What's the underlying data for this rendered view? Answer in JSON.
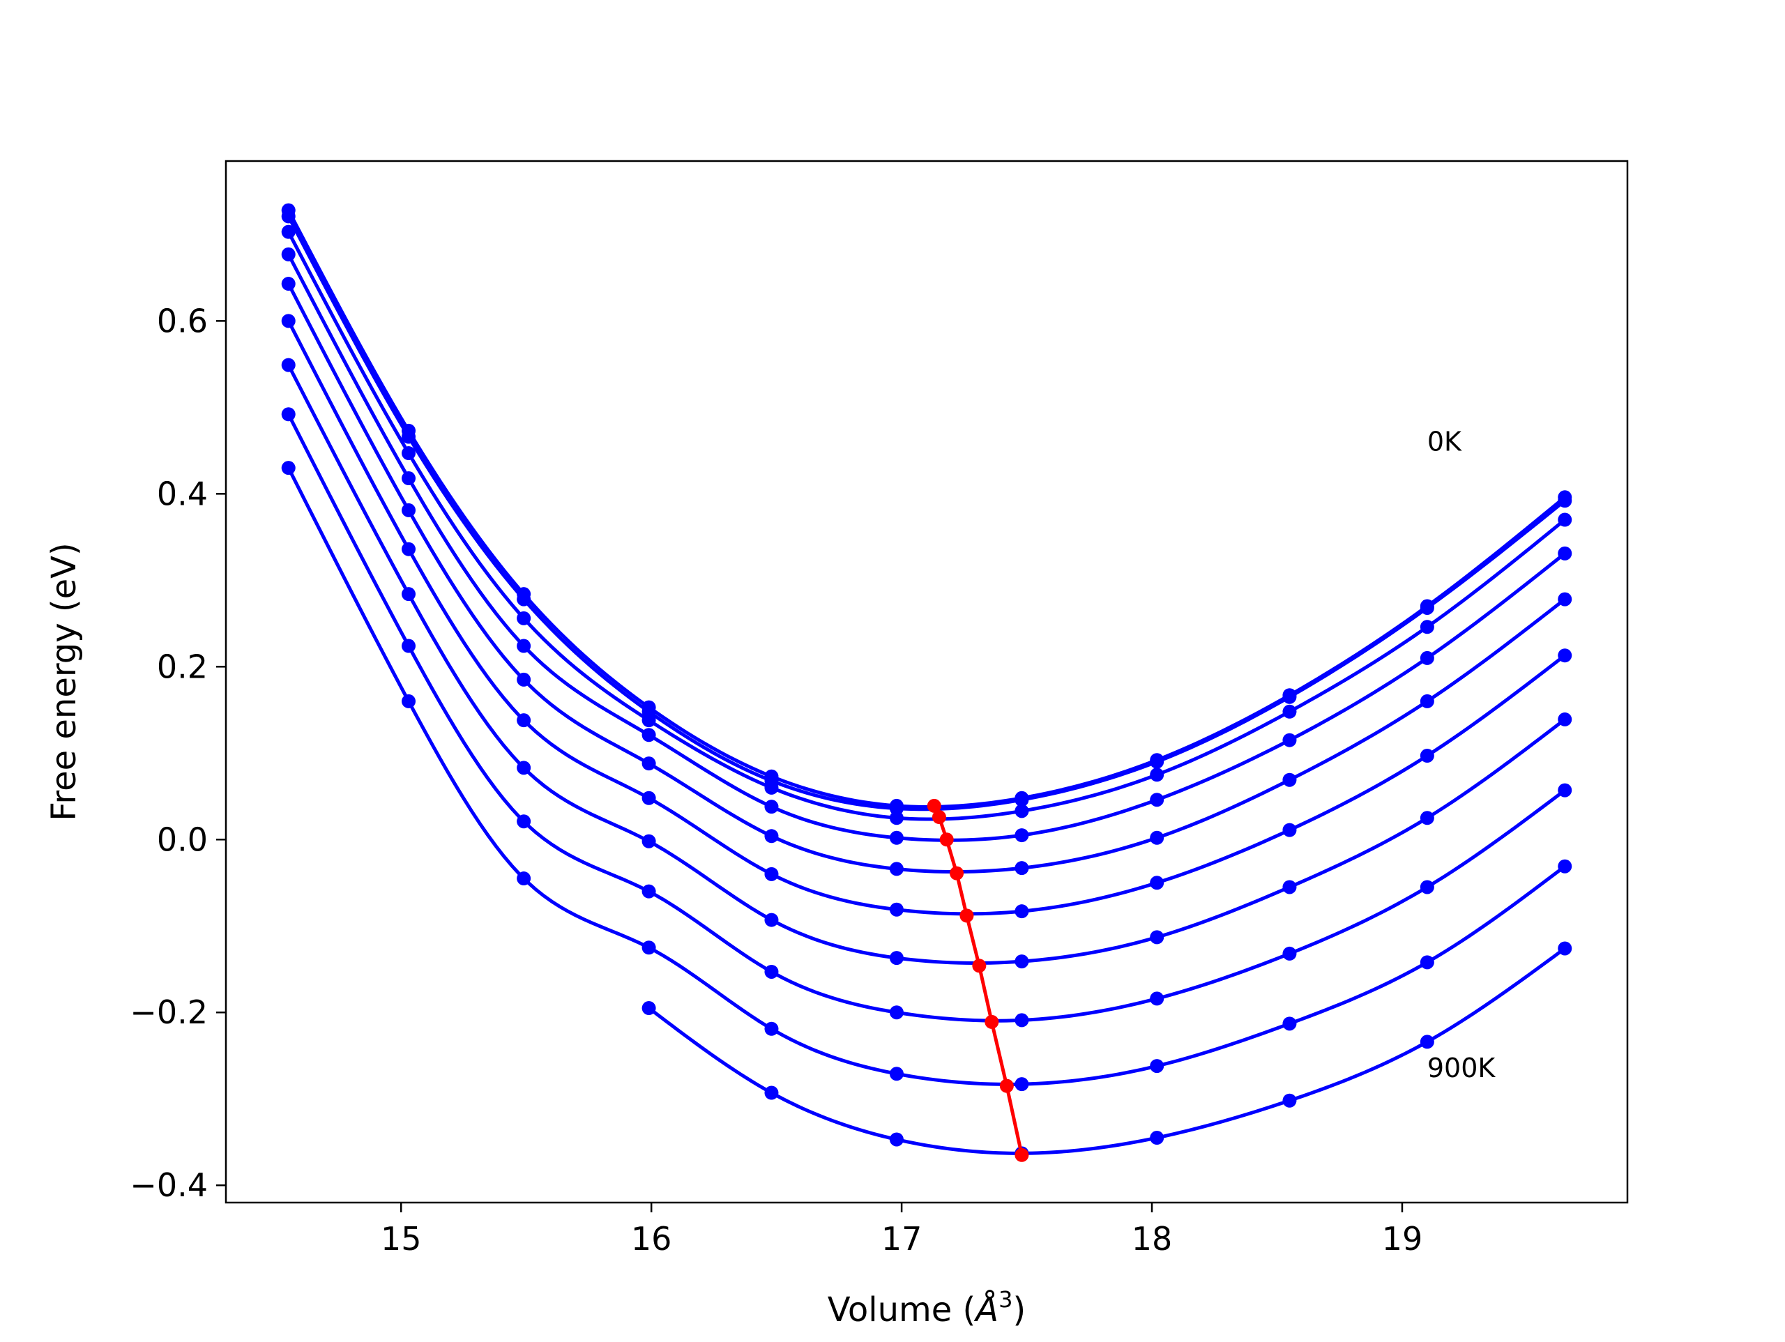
{
  "chart_data": {
    "type": "line",
    "xlabel": "Volume (",
    "xlabel_unit": "Å",
    "xlabel_sup": "3",
    "xlabel_close": ")",
    "ylabel": "Free energy (eV)",
    "xlim": [
      14.3,
      19.9
    ],
    "ylim": [
      -0.42,
      0.785
    ],
    "xticks": [
      15,
      16,
      17,
      18,
      19
    ],
    "xtick_labels": [
      "15",
      "16",
      "17",
      "18",
      "19"
    ],
    "yticks": [
      -0.4,
      -0.2,
      0.0,
      0.2,
      0.4,
      0.6
    ],
    "ytick_labels": [
      "−0.4",
      "−0.2",
      "0.0",
      "0.2",
      "0.4",
      "0.6"
    ],
    "annotations": [
      {
        "text": "0K",
        "x": 19.1,
        "y": 0.45
      },
      {
        "text": "900K",
        "x": 19.1,
        "y": -0.275
      }
    ],
    "series_color": "#0000ff",
    "min_line_color": "#ff0000",
    "series": [
      {
        "v": [
          14.55,
          15.03,
          15.49,
          15.99,
          16.48,
          16.98,
          17.48,
          18.02,
          18.55,
          19.1,
          19.65
        ],
        "E": [
          0.728,
          0.473,
          0.284,
          0.153,
          0.073,
          0.039,
          0.048,
          0.092,
          0.167,
          0.27,
          0.396
        ]
      },
      {
        "v": [
          14.55,
          15.03,
          15.49,
          15.99,
          16.48,
          16.98,
          17.48,
          18.02,
          18.55,
          19.1,
          19.65
        ],
        "E": [
          0.721,
          0.466,
          0.278,
          0.148,
          0.068,
          0.036,
          0.046,
          0.09,
          0.165,
          0.268,
          0.392
        ]
      },
      {
        "v": [
          14.55,
          15.03,
          15.49,
          15.99,
          16.48,
          16.98,
          17.48,
          18.02,
          18.55,
          19.1,
          19.65
        ],
        "E": [
          0.703,
          0.447,
          0.256,
          0.138,
          0.06,
          0.025,
          0.033,
          0.075,
          0.148,
          0.246,
          0.37
        ]
      },
      {
        "v": [
          14.55,
          15.03,
          15.49,
          15.99,
          16.48,
          16.98,
          17.48,
          18.02,
          18.55,
          19.1,
          19.65
        ],
        "E": [
          0.677,
          0.418,
          0.224,
          0.121,
          0.038,
          0.002,
          0.005,
          0.046,
          0.115,
          0.21,
          0.331
        ]
      },
      {
        "v": [
          14.55,
          15.03,
          15.49,
          15.99,
          16.48,
          16.98,
          17.48,
          18.02,
          18.55,
          19.1,
          19.65
        ],
        "E": [
          0.643,
          0.381,
          0.185,
          0.088,
          0.004,
          -0.034,
          -0.033,
          0.002,
          0.069,
          0.16,
          0.278
        ]
      },
      {
        "v": [
          14.55,
          15.03,
          15.49,
          15.99,
          16.48,
          16.98,
          17.48,
          18.02,
          18.55,
          19.1,
          19.65
        ],
        "E": [
          0.6,
          0.336,
          0.138,
          0.048,
          -0.04,
          -0.081,
          -0.083,
          -0.05,
          0.011,
          0.097,
          0.213
        ]
      },
      {
        "v": [
          14.55,
          15.03,
          15.49,
          15.99,
          16.48,
          16.98,
          17.48,
          18.02,
          18.55,
          19.1,
          19.65
        ],
        "E": [
          0.549,
          0.284,
          0.083,
          -0.002,
          -0.093,
          -0.137,
          -0.141,
          -0.113,
          -0.055,
          0.025,
          0.139
        ]
      },
      {
        "v": [
          14.55,
          15.03,
          15.49,
          15.99,
          16.48,
          16.98,
          17.48,
          18.02,
          18.55,
          19.1,
          19.65
        ],
        "E": [
          0.492,
          0.224,
          0.021,
          -0.06,
          -0.153,
          -0.2,
          -0.209,
          -0.184,
          -0.132,
          -0.055,
          0.057
        ]
      },
      {
        "v": [
          14.55,
          15.03,
          15.49,
          15.99,
          16.48,
          16.98,
          17.48,
          18.02,
          18.55,
          19.1,
          19.65
        ],
        "E": [
          0.43,
          0.16,
          -0.045,
          -0.125,
          -0.219,
          -0.271,
          -0.283,
          -0.262,
          -0.213,
          -0.142,
          -0.031
        ]
      },
      {
        "v": [
          15.99,
          16.48,
          16.98,
          17.48,
          18.02,
          18.55,
          19.1,
          19.65
        ],
        "E": [
          -0.195,
          -0.293,
          -0.347,
          -0.363,
          -0.345,
          -0.302,
          -0.234,
          -0.126
        ]
      }
    ],
    "minima": {
      "v": [
        17.13,
        17.15,
        17.18,
        17.22,
        17.26,
        17.31,
        17.36,
        17.42,
        17.48
      ],
      "E": [
        0.039,
        0.026,
        0.0,
        -0.039,
        -0.088,
        -0.146,
        -0.211,
        -0.285,
        -0.365
      ]
    }
  }
}
